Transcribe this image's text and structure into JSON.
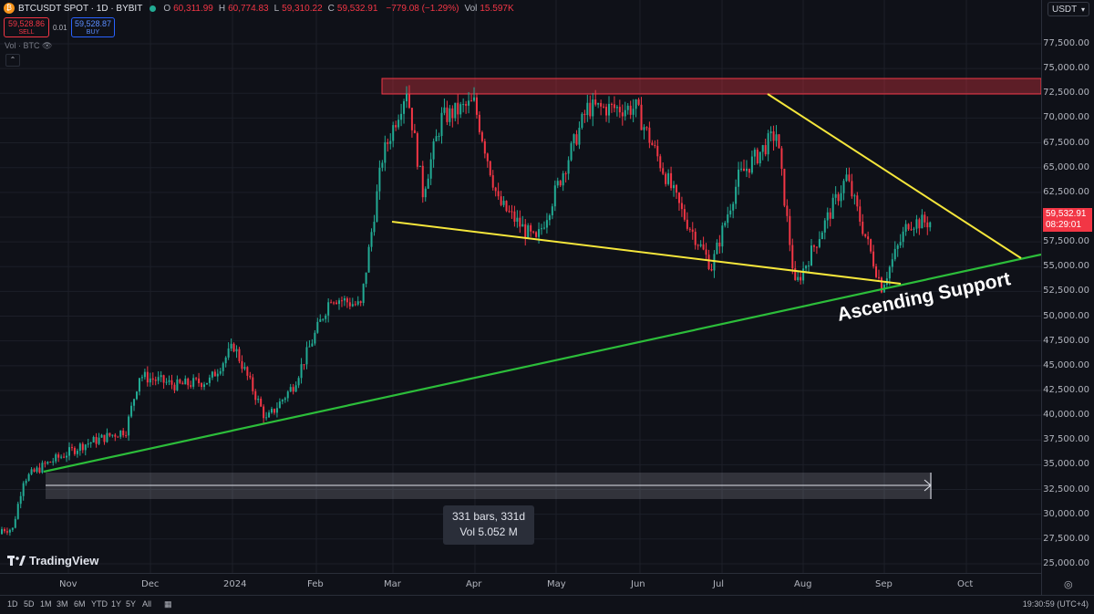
{
  "header": {
    "symbol": "BTCUSDT SPOT · 1D · BYBIT",
    "coin_glyph": "₿",
    "status_color": "#22ab94",
    "ohlc": [
      {
        "k": "O",
        "v": "60,311.99"
      },
      {
        "k": "H",
        "v": "60,774.83"
      },
      {
        "k": "L",
        "v": "59,310.22"
      },
      {
        "k": "C",
        "v": "59,532.91"
      },
      {
        "k": "",
        "v": "−779.08 (−1.29%)"
      },
      {
        "k": "Vol",
        "v": "15.597K"
      }
    ]
  },
  "trade": {
    "sell_price": "59,528.86",
    "sell_label": "SELL",
    "buy_price": "59,528.87",
    "buy_label": "BUY",
    "spread": "0.01"
  },
  "volume_indicator": {
    "label": "Vol · BTC"
  },
  "currency_button": "USDT",
  "price_axis": [
    "77,500.00",
    "75,000.00",
    "72,500.00",
    "70,000.00",
    "67,500.00",
    "65,000.00",
    "62,500.00",
    "60,000.00",
    "57,500.00",
    "55,000.00",
    "52,500.00",
    "50,000.00",
    "47,500.00",
    "45,000.00",
    "42,500.00",
    "40,000.00",
    "37,500.00",
    "35,000.00",
    "32,500.00",
    "30,000.00",
    "27,500.00",
    "25,000.00"
  ],
  "current_price": {
    "price": "59,532.91",
    "countdown": "08:29:01",
    "color": "#f23645"
  },
  "time_axis": [
    "Nov",
    "Dec",
    "2024",
    "Feb",
    "Mar",
    "Apr",
    "May",
    "Jun",
    "Jul",
    "Aug",
    "Sep",
    "Oct"
  ],
  "annotation": "Ascending Support",
  "measure": {
    "line1": "331 bars, 331d",
    "line2": "Vol 5.052 M"
  },
  "branding": "TradingView",
  "timeframes": [
    "1D",
    "5D",
    "1M",
    "3M",
    "6M",
    "YTD",
    "1Y",
    "5Y",
    "All"
  ],
  "clock": "19:30:59 (UTC+4)",
  "colors": {
    "up": "#22ab94",
    "down": "#f23645",
    "resistance": "#f23645",
    "wedge": "#f5e63b",
    "support": "#2cbd3a"
  },
  "chart_data": {
    "type": "candlestick",
    "title": "",
    "ylim": [
      25000,
      77500
    ],
    "resistance_zone": [
      72000,
      74000
    ],
    "closes": [
      {
        "x": "Oct 20",
        "y": 28500
      },
      {
        "x": "Oct 24",
        "y": 33500
      },
      {
        "x": "Nov 1",
        "y": 35000
      },
      {
        "x": "Nov 15",
        "y": 37000
      },
      {
        "x": "Dec 1",
        "y": 38500
      },
      {
        "x": "Dec 6",
        "y": 44000
      },
      {
        "x": "Dec 20",
        "y": 43000
      },
      {
        "x": "Jan 1",
        "y": 43500
      },
      {
        "x": "Jan 10",
        "y": 47000
      },
      {
        "x": "Jan 22",
        "y": 39500
      },
      {
        "x": "Feb 1",
        "y": 43000
      },
      {
        "x": "Feb 15",
        "y": 52000
      },
      {
        "x": "Feb 26",
        "y": 51000
      },
      {
        "x": "Mar 5",
        "y": 66000
      },
      {
        "x": "Mar 14",
        "y": 73000
      },
      {
        "x": "Mar 20",
        "y": 62500
      },
      {
        "x": "Mar 27",
        "y": 70000
      },
      {
        "x": "Apr 8",
        "y": 71500
      },
      {
        "x": "Apr 17",
        "y": 61500
      },
      {
        "x": "May 1",
        "y": 57500
      },
      {
        "x": "May 20",
        "y": 71000
      },
      {
        "x": "Jun 7",
        "y": 71000
      },
      {
        "x": "Jun 24",
        "y": 60500
      },
      {
        "x": "Jul 5",
        "y": 55000
      },
      {
        "x": "Jul 15",
        "y": 64000
      },
      {
        "x": "Jul 29",
        "y": 68500
      },
      {
        "x": "Aug 5",
        "y": 53000
      },
      {
        "x": "Aug 24",
        "y": 64000
      },
      {
        "x": "Sep 6",
        "y": 53000
      },
      {
        "x": "Sep 16",
        "y": 59500
      }
    ]
  }
}
